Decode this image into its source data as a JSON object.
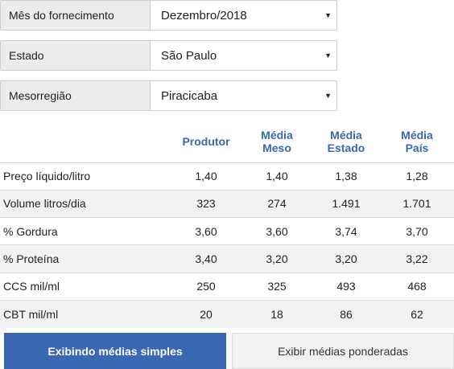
{
  "filters": [
    {
      "label": "Mês do fornecimento",
      "value": "Dezembro/2018"
    },
    {
      "label": "Estado",
      "value": "São Paulo"
    },
    {
      "label": "Mesorregião",
      "value": "Piracicaba"
    }
  ],
  "table": {
    "headers": [
      "",
      "Produtor",
      "Média\nMeso",
      "Média\nEstado",
      "Média\nPaís"
    ],
    "rows": [
      {
        "label": "Preço líquido/litro",
        "values": [
          "1,40",
          "1,40",
          "1,38",
          "1,28"
        ]
      },
      {
        "label": "Volume litros/dia",
        "values": [
          "323",
          "274",
          "1.491",
          "1.701"
        ]
      },
      {
        "label": "% Gordura",
        "values": [
          "3,60",
          "3,60",
          "3,74",
          "3,70"
        ]
      },
      {
        "label": "% Proteína",
        "values": [
          "3,40",
          "3,20",
          "3,20",
          "3,22"
        ]
      },
      {
        "label": "CCS mil/ml",
        "values": [
          "250",
          "325",
          "493",
          "468"
        ]
      },
      {
        "label": "CBT mil/ml",
        "values": [
          "20",
          "18",
          "86",
          "62"
        ]
      }
    ]
  },
  "buttons": {
    "simple_label": "Exibindo médias simples",
    "weighted_label": "Exibir médias ponderadas"
  },
  "colors": {
    "accent": "#3a68b2",
    "header_text": "#3a68b2",
    "filter_label_bg": "#ececec",
    "row_alt_bg": "#f2f2f2"
  },
  "icons": {
    "select_caret": "caret-down-icon"
  }
}
